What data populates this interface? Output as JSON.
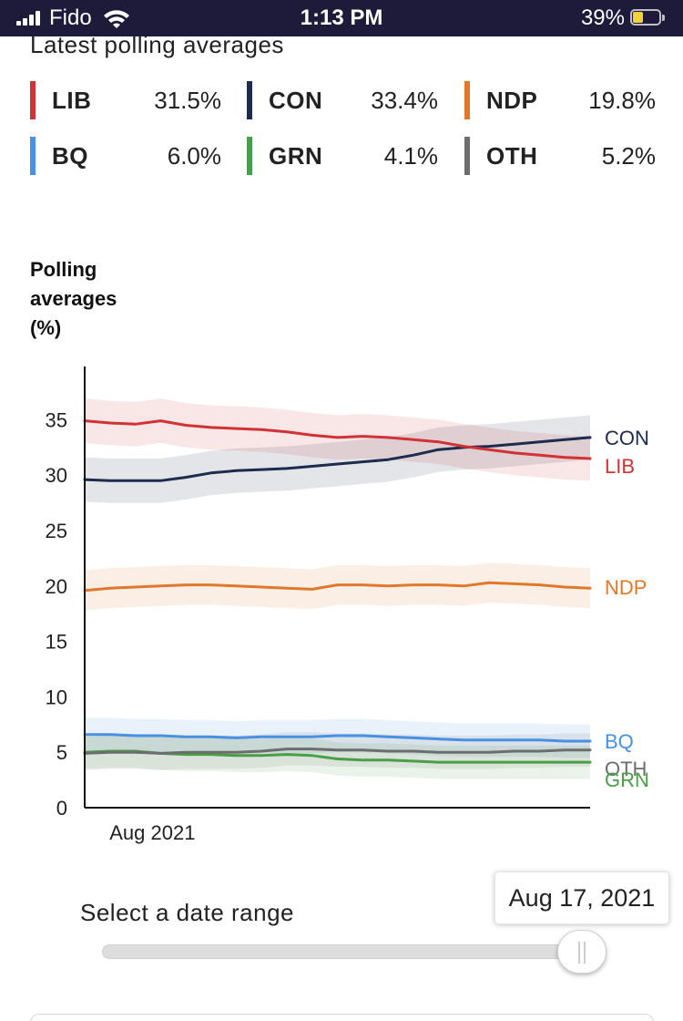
{
  "status_bar": {
    "carrier": "Fido",
    "time": "1:13 PM",
    "battery": "39%",
    "battery_level": 0.39
  },
  "latest": {
    "title": "Latest polling averages",
    "items": [
      {
        "party": "LIB",
        "value": "31.5%",
        "color": "#d03235"
      },
      {
        "party": "CON",
        "value": "33.4%",
        "color": "#1c2b4e"
      },
      {
        "party": "NDP",
        "value": "19.8%",
        "color": "#e0782c"
      },
      {
        "party": "BQ",
        "value": "6.0%",
        "color": "#4a90e2"
      },
      {
        "party": "GRN",
        "value": "4.1%",
        "color": "#4a9e47"
      },
      {
        "party": "OTH",
        "value": "5.2%",
        "color": "#6d6d6d"
      }
    ]
  },
  "chart_data": {
    "type": "line",
    "ylabel_lines": [
      "Polling",
      "averages",
      "(%)"
    ],
    "ylim": [
      0,
      40
    ],
    "yticks": [
      0,
      5,
      10,
      15,
      20,
      25,
      30,
      35
    ],
    "xticks": [
      {
        "value": 0.17,
        "label": "Aug 2021"
      }
    ],
    "x": [
      0,
      0.05,
      0.1,
      0.15,
      0.2,
      0.25,
      0.3,
      0.35,
      0.4,
      0.45,
      0.5,
      0.55,
      0.6,
      0.65,
      0.7,
      0.75,
      0.8,
      0.85,
      0.9,
      0.95,
      1.0
    ],
    "uncertainty_bands": true,
    "grid": false,
    "series": [
      {
        "name": "CON",
        "color": "#1c2b4e",
        "band": 2.0,
        "values": [
          29.6,
          29.5,
          29.5,
          29.5,
          29.8,
          30.2,
          30.4,
          30.5,
          30.6,
          30.8,
          31.0,
          31.2,
          31.4,
          31.8,
          32.3,
          32.5,
          32.6,
          32.8,
          33.0,
          33.2,
          33.4
        ]
      },
      {
        "name": "LIB",
        "color": "#d03235",
        "band": 2.0,
        "values": [
          34.9,
          34.7,
          34.6,
          34.9,
          34.5,
          34.3,
          34.2,
          34.1,
          33.9,
          33.6,
          33.4,
          33.5,
          33.4,
          33.2,
          33.0,
          32.6,
          32.3,
          32.0,
          31.8,
          31.6,
          31.5
        ]
      },
      {
        "name": "NDP",
        "color": "#e0782c",
        "band": 1.8,
        "values": [
          19.6,
          19.8,
          19.9,
          20.0,
          20.1,
          20.1,
          20.0,
          19.9,
          19.8,
          19.7,
          20.1,
          20.1,
          20.0,
          20.1,
          20.1,
          20.0,
          20.3,
          20.2,
          20.1,
          19.9,
          19.8
        ]
      },
      {
        "name": "BQ",
        "color": "#4a90e2",
        "band": 1.5,
        "values": [
          6.6,
          6.6,
          6.5,
          6.5,
          6.4,
          6.4,
          6.3,
          6.4,
          6.4,
          6.4,
          6.5,
          6.5,
          6.4,
          6.3,
          6.2,
          6.1,
          6.1,
          6.1,
          6.1,
          6.0,
          6.0
        ]
      },
      {
        "name": "OTH",
        "color": "#6d6d6d",
        "band": 1.5,
        "values": [
          4.9,
          5.0,
          5.0,
          4.9,
          5.0,
          5.0,
          5.0,
          5.1,
          5.3,
          5.3,
          5.2,
          5.2,
          5.1,
          5.1,
          5.0,
          5.0,
          5.0,
          5.1,
          5.1,
          5.2,
          5.2
        ]
      },
      {
        "name": "GRN",
        "color": "#4a9e47",
        "band": 1.5,
        "values": [
          5.0,
          5.1,
          5.1,
          4.9,
          4.8,
          4.8,
          4.7,
          4.7,
          4.8,
          4.7,
          4.4,
          4.3,
          4.3,
          4.2,
          4.1,
          4.1,
          4.1,
          4.1,
          4.1,
          4.1,
          4.1
        ]
      }
    ]
  },
  "date_range": {
    "label": "Select a date range",
    "selected": "Aug 17, 2021",
    "position": 0.95
  }
}
